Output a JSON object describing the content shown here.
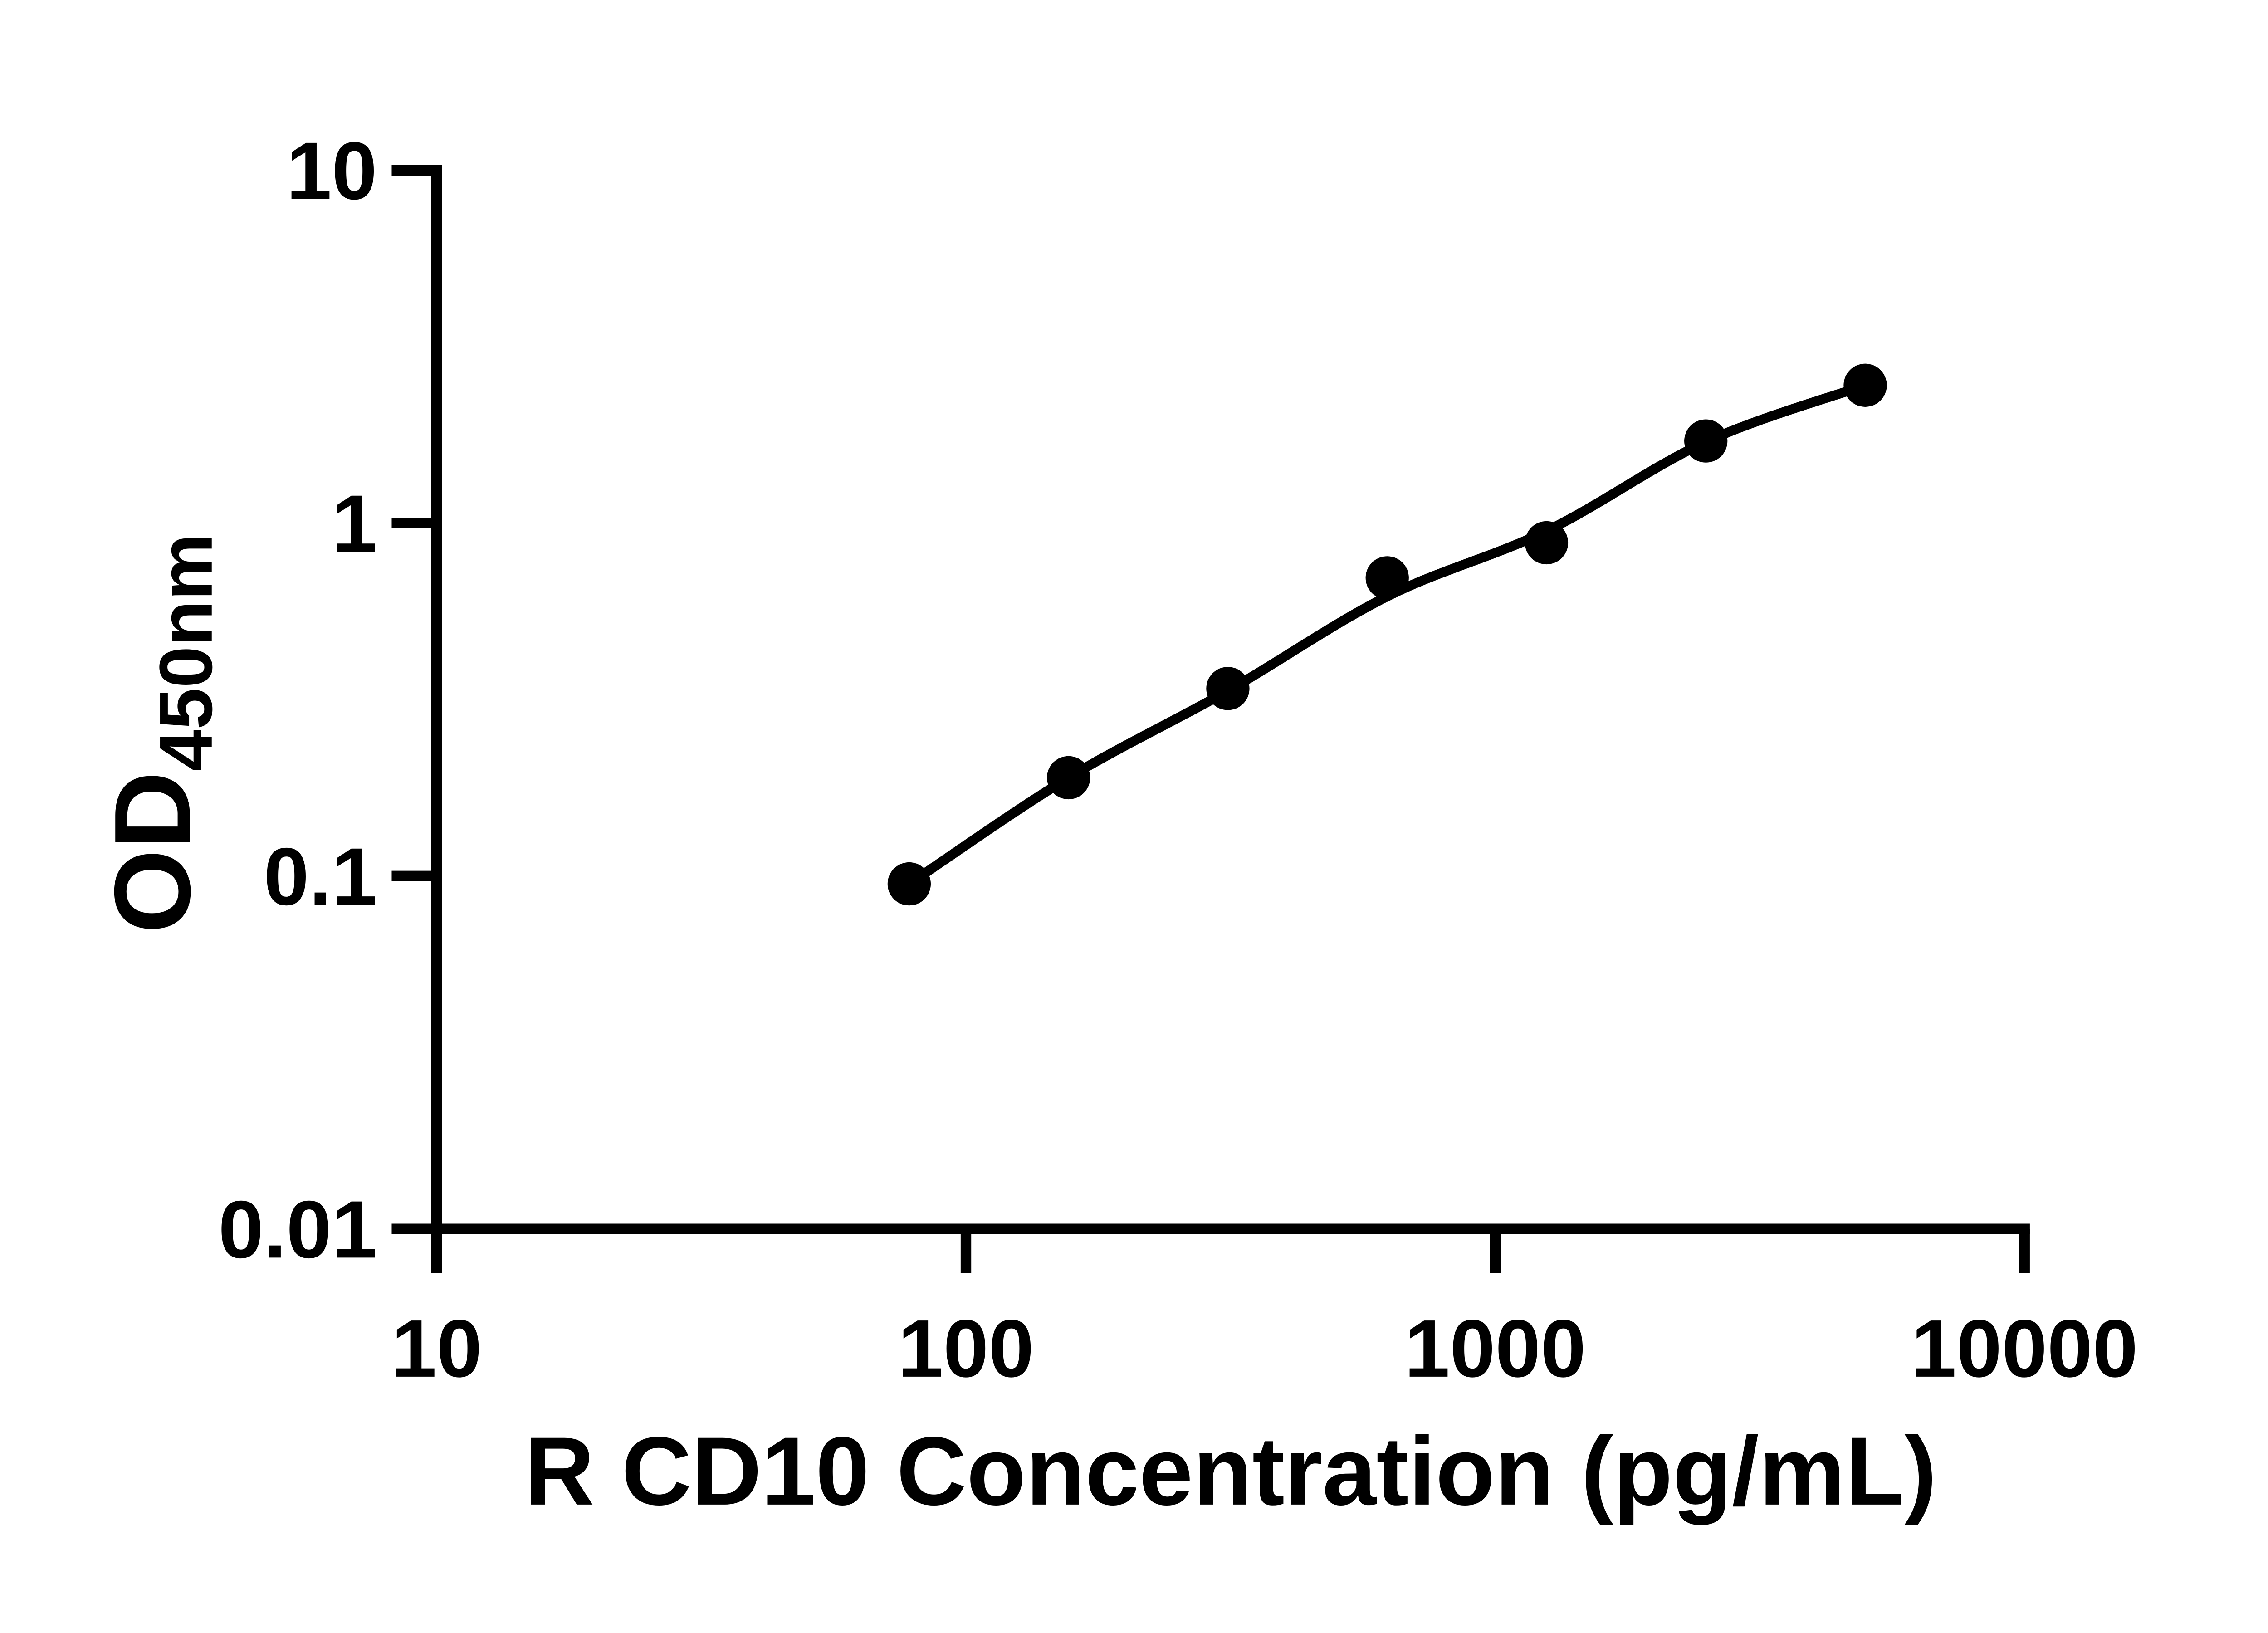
{
  "chart_data": {
    "type": "scatter",
    "title": "",
    "xlabel": "R CD10 Concentration (pg/mL)",
    "ylabel": "OD450nm",
    "ylabel_main": "OD",
    "ylabel_sub": "450nm",
    "x_scale": "log",
    "y_scale": "log",
    "xlim": [
      10,
      10000
    ],
    "ylim": [
      0.01,
      10
    ],
    "grid": false,
    "legend": "none",
    "marker_color": "#000000",
    "line_color": "#000000",
    "background_color": "#ffffff",
    "x": [
      78.125,
      156.25,
      312.5,
      625,
      1250,
      2500,
      5000
    ],
    "y": [
      0.095,
      0.19,
      0.34,
      0.7,
      0.88,
      1.71,
      2.46
    ],
    "fit_y": [
      0.095,
      0.19,
      0.335,
      0.62,
      0.95,
      1.7,
      2.46
    ],
    "x_ticks": [
      10,
      100,
      1000,
      10000
    ],
    "x_tick_labels": [
      "10",
      "100",
      "1000",
      "10000"
    ],
    "y_ticks": [
      0.01,
      0.1,
      1,
      10
    ],
    "y_tick_labels": [
      "0.01",
      "0.1",
      "1",
      "10"
    ]
  }
}
